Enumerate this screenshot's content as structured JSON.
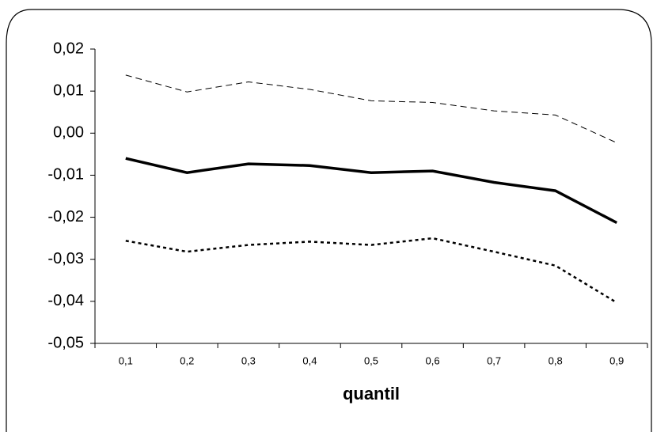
{
  "chart_data": {
    "type": "line",
    "x_label": "quantil",
    "categories": [
      "0,1",
      "0,2",
      "0,3",
      "0,4",
      "0,5",
      "0,6",
      "0,7",
      "0,8",
      "0,9"
    ],
    "series": [
      {
        "color": "#000000",
        "style": "dashed",
        "width": 1,
        "values": [
          0.0138,
          0.0098,
          0.0122,
          0.0104,
          0.0077,
          0.0073,
          0.0053,
          0.0043,
          -0.0023
        ]
      },
      {
        "color": "#000000",
        "style": "solid",
        "width": 3.5,
        "values": [
          -0.006,
          -0.0094,
          -0.0073,
          -0.0077,
          -0.0094,
          -0.009,
          -0.0117,
          -0.0137,
          -0.0213
        ]
      },
      {
        "color": "#000000",
        "style": "dotted",
        "width": 2.5,
        "values": [
          -0.0256,
          -0.0282,
          -0.0266,
          -0.0258,
          -0.0266,
          -0.025,
          -0.0282,
          -0.0315,
          -0.0403
        ]
      }
    ],
    "ylim": [
      -0.05,
      0.02
    ],
    "yticks": [
      {
        "value": -0.05,
        "label": "-0,05"
      },
      {
        "value": -0.04,
        "label": "-0,04"
      },
      {
        "value": -0.03,
        "label": "-0,03"
      },
      {
        "value": -0.02,
        "label": "-0,02"
      },
      {
        "value": -0.01,
        "label": "-0,01"
      },
      {
        "value": 0,
        "label": "0,00"
      },
      {
        "value": 0.01,
        "label": "0,01"
      },
      {
        "value": 0.02,
        "label": "0,02"
      }
    ],
    "grid": false
  }
}
